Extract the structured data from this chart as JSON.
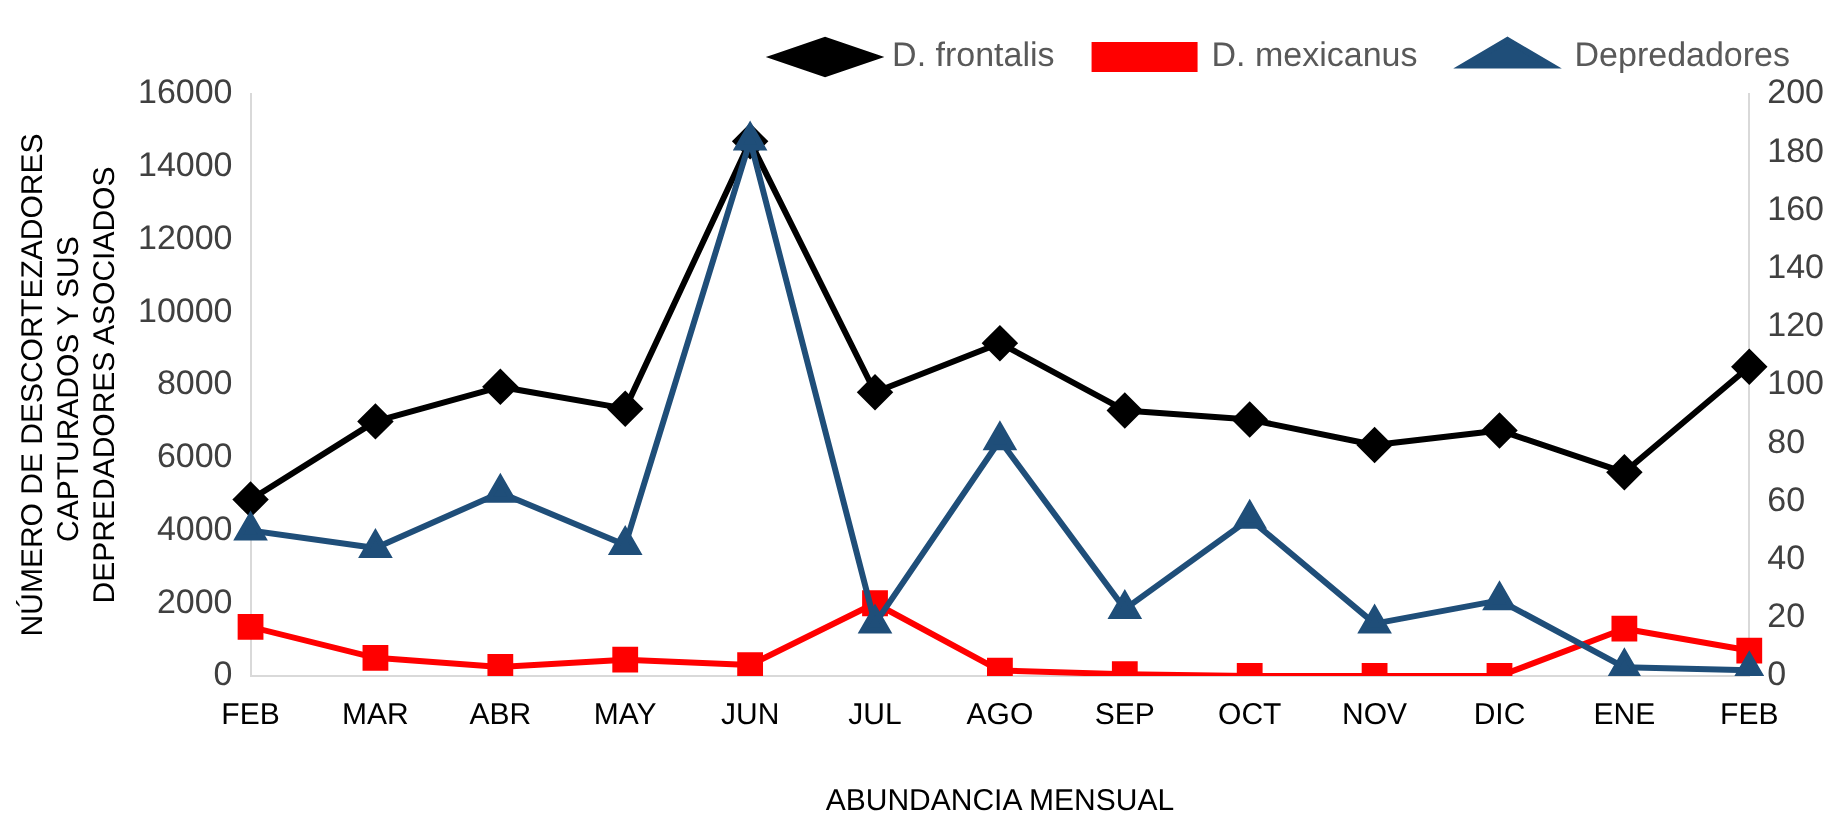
{
  "chart_data": {
    "type": "line",
    "xlabel": "ABUNDANCIA MENSUAL",
    "ylabel": "NÚMERO DE DESCORTEZADORES CAPTURADOS Y SUS  DEPREDADORES ASOCIADOS",
    "categories": [
      "FEB",
      "MAR",
      "ABR",
      "MAY",
      "JUN",
      "JUL",
      "AGO",
      "SEP",
      "OCT",
      "NOV",
      "DIC",
      "ENE",
      "FEB"
    ],
    "series": [
      {
        "name": "D. frontalis",
        "color": "#000000",
        "marker": "diamond",
        "values": [
          4850,
          7000,
          7950,
          7350,
          14700,
          7800,
          9150,
          7300,
          7050,
          6350,
          6750,
          5600,
          8500
        ]
      },
      {
        "name": "D. mexicanus",
        "color": "#ff0000",
        "marker": "square",
        "values": [
          1350,
          500,
          250,
          450,
          300,
          2000,
          150,
          50,
          0,
          0,
          0,
          1300,
          700
        ]
      },
      {
        "name": "Depredadores",
        "color": "#1f4e79",
        "marker": "triangle",
        "axis": "y2",
        "values": [
          50,
          44,
          63,
          45,
          184,
          18,
          81,
          23,
          54,
          18,
          26,
          3,
          2
        ]
      }
    ],
    "ylim": [
      0,
      16000
    ],
    "yticks": [
      0,
      2000,
      4000,
      6000,
      8000,
      10000,
      12000,
      14000,
      16000
    ],
    "y2lim": [
      0,
      200
    ],
    "y2ticks": [
      0,
      20,
      40,
      60,
      80,
      100,
      120,
      140,
      160,
      180,
      200
    ],
    "grid": false,
    "legend": "top"
  }
}
